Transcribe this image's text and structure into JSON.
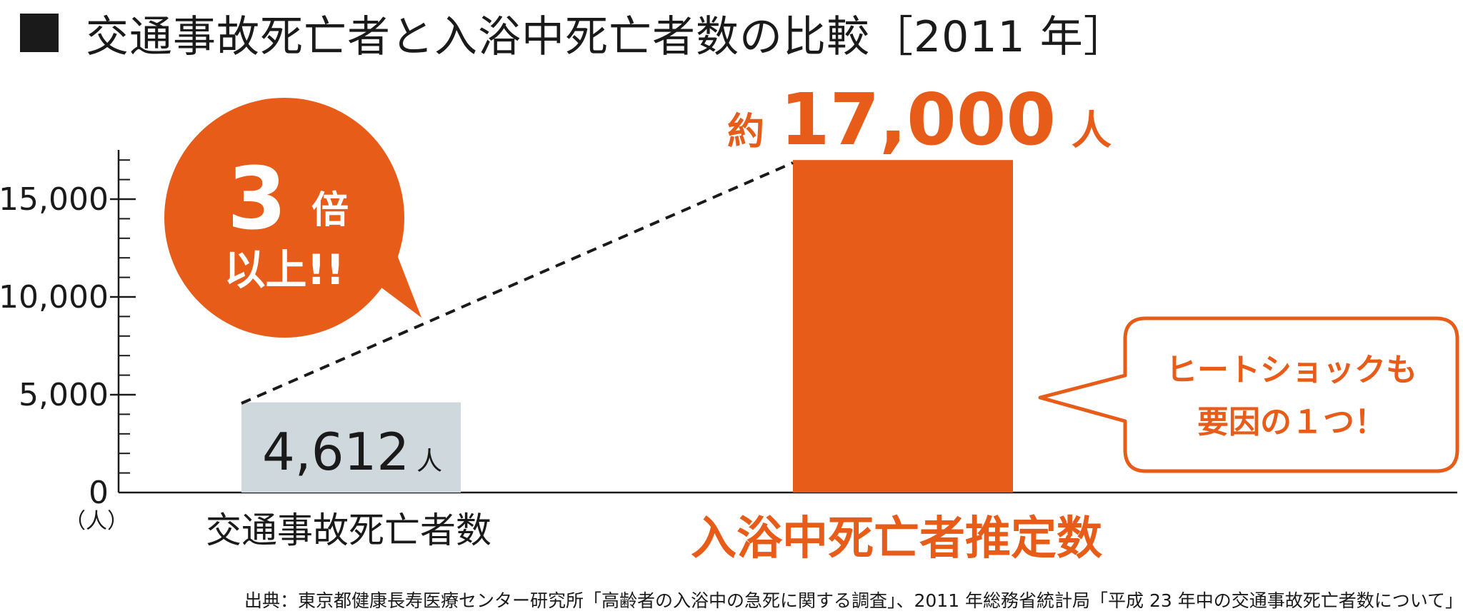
{
  "title": "交通事故死亡者と入浴中死亡者数の比較［2011 年］",
  "chart_data": {
    "type": "bar",
    "categories": [
      "交通事故死亡者数",
      "入浴中死亡者推定数"
    ],
    "values": [
      4612,
      17000
    ],
    "ylim": [
      0,
      17000
    ],
    "yticks": [
      0,
      5000,
      10000,
      15000
    ],
    "ytick_labels": [
      "0",
      "5,000",
      "10,000",
      "15,000"
    ],
    "yunit": "（人）",
    "bar_colors": [
      "#cfd8dc",
      "#e85c1a"
    ],
    "value_labels": [
      {
        "number": "4,612",
        "unit": "人"
      },
      {
        "prefix": "約",
        "number": "17,000",
        "unit": "人"
      }
    ],
    "annotations": {
      "ratio_number": "3",
      "ratio_suffix": "倍",
      "ratio_line2": "以上!!",
      "callout_line1": "ヒートショックも",
      "callout_line2": "要因の１つ！"
    },
    "grid": false
  },
  "source": "出典：東京都健康長寿医療センター研究所「高齢者の入浴中の急死に関する調査」、2011 年総務省統計局「平成 23 年中の交通事故死亡者数について」",
  "colors": {
    "accent": "#e85c1a",
    "bar1": "#cfd8dc",
    "text": "#1a1a1a"
  }
}
